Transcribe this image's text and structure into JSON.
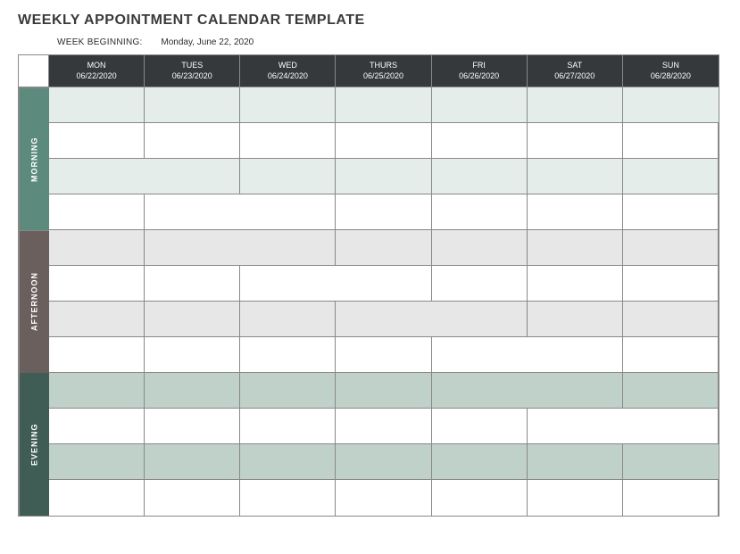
{
  "title": "WEEKLY APPOINTMENT CALENDAR TEMPLATE",
  "week_beginning_label": "WEEK BEGINNING:",
  "week_beginning_value": "Monday, June 22, 2020",
  "days": [
    {
      "name": "MON",
      "date": "06/22/2020"
    },
    {
      "name": "TUES",
      "date": "06/23/2020"
    },
    {
      "name": "WED",
      "date": "06/24/2020"
    },
    {
      "name": "THURS",
      "date": "06/25/2020"
    },
    {
      "name": "FRI",
      "date": "06/26/2020"
    },
    {
      "name": "SAT",
      "date": "06/27/2020"
    },
    {
      "name": "SUN",
      "date": "06/28/2020"
    }
  ],
  "periods": [
    {
      "label": "MORNING",
      "bg": "#5c8b7d",
      "stripe": "#e4ede9",
      "rows": 4
    },
    {
      "label": "AFTERNOON",
      "bg": "#6a5f5d",
      "stripe": "#e7e7e7",
      "rows": 4
    },
    {
      "label": "EVENING",
      "bg": "#3f5d55",
      "stripe": "#c0d1ca",
      "rows": 4
    }
  ],
  "colors": {
    "header_bg": "#35393c",
    "header_fg": "#ffffff",
    "border": "#888888",
    "row_alt": "#ffffff",
    "title_color": "#3a3a3a"
  }
}
